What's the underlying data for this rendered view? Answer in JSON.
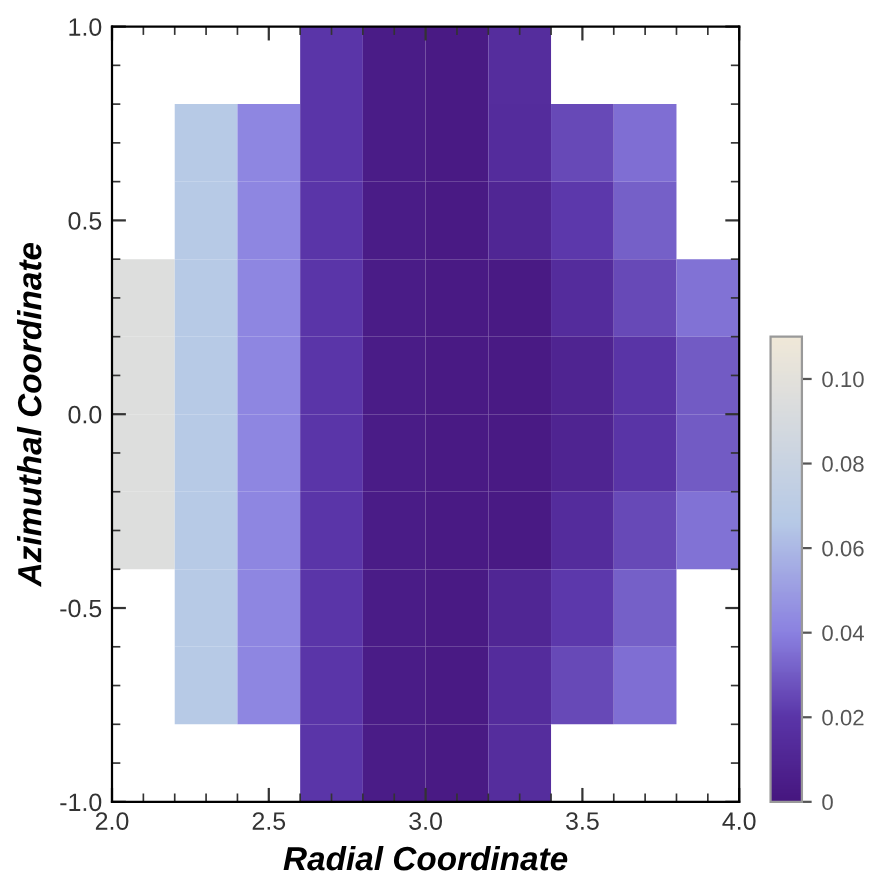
{
  "chart_data": {
    "type": "heatmap",
    "xlabel": "Radial Coordinate",
    "ylabel": "Azimuthal Coordinate",
    "xlim": [
      2.0,
      4.0
    ],
    "ylim": [
      -1.0,
      1.0
    ],
    "xticks": [
      {
        "value": 2.0,
        "label": "2.0"
      },
      {
        "value": 2.5,
        "label": "2.5"
      },
      {
        "value": 3.0,
        "label": "3.0"
      },
      {
        "value": 3.5,
        "label": "3.5"
      },
      {
        "value": 4.0,
        "label": "4.0"
      }
    ],
    "yticks": [
      {
        "value": -1.0,
        "label": "-1.0"
      },
      {
        "value": -0.5,
        "label": "-0.5"
      },
      {
        "value": 0.0,
        "label": "0.0"
      },
      {
        "value": 0.5,
        "label": "0.5"
      },
      {
        "value": 1.0,
        "label": "1.0"
      }
    ],
    "clim": [
      0,
      0.11
    ],
    "cticks": [
      0,
      {
        "value": 0.02,
        "label": "0.02"
      },
      {
        "value": 0.04,
        "label": "0.04"
      },
      {
        "value": 0.06,
        "label": "0.06"
      },
      {
        "value": 0.08,
        "label": "0.08"
      },
      {
        "value": 0.1,
        "label": "0.10"
      }
    ],
    "cells": [
      [
        null,
        null,
        null,
        0.02,
        0.004,
        0.003,
        0.015,
        null,
        null,
        null
      ],
      [
        null,
        0.067,
        0.042,
        0.02,
        0.004,
        0.003,
        0.014,
        0.025,
        0.035,
        null
      ],
      [
        null,
        0.067,
        0.042,
        0.02,
        0.004,
        0.003,
        0.01,
        0.021,
        0.031,
        null
      ],
      [
        0.095,
        0.067,
        0.042,
        0.02,
        0.004,
        0.003,
        0.003,
        0.014,
        0.025,
        0.036
      ],
      [
        0.095,
        0.067,
        0.042,
        0.02,
        0.004,
        0.003,
        0.003,
        0.009,
        0.019,
        0.03
      ],
      [
        0.095,
        0.067,
        0.042,
        0.02,
        0.004,
        0.003,
        0.003,
        0.009,
        0.019,
        0.03
      ],
      [
        0.095,
        0.067,
        0.042,
        0.02,
        0.004,
        0.003,
        0.003,
        0.014,
        0.025,
        0.036
      ],
      [
        null,
        0.067,
        0.042,
        0.02,
        0.004,
        0.003,
        0.01,
        0.021,
        0.031,
        null
      ],
      [
        null,
        0.067,
        0.042,
        0.02,
        0.004,
        0.003,
        0.014,
        0.025,
        0.035,
        null
      ],
      [
        null,
        null,
        null,
        0.02,
        0.004,
        0.003,
        0.015,
        null,
        null,
        null
      ]
    ],
    "grid": false
  }
}
